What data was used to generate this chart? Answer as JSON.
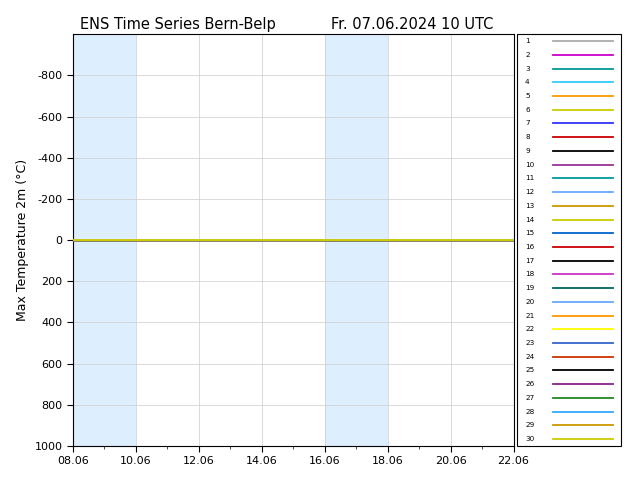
{
  "title_left": "ENS Time Series Bern-Belp",
  "title_right": "Fr. 07.06.2024 10 UTC",
  "ylabel": "Max Temperature 2m (°C)",
  "ylim_bottom": 1000,
  "ylim_top": -1000,
  "yticks": [
    -800,
    -600,
    -400,
    -200,
    0,
    200,
    400,
    600,
    800,
    1000
  ],
  "xtick_labels": [
    "08.06",
    "10.06",
    "12.06",
    "14.06",
    "16.06",
    "18.06",
    "20.06",
    "22.06"
  ],
  "xtick_positions": [
    0,
    2,
    4,
    6,
    8,
    10,
    12,
    14
  ],
  "shade_ranges": [
    [
      0,
      2
    ],
    [
      8,
      10
    ]
  ],
  "member_colors": [
    "#aaaaaa",
    "#cc00cc",
    "#009999",
    "#33ccff",
    "#ff9900",
    "#cccc00",
    "#3333ff",
    "#cc0000",
    "#000000",
    "#993399",
    "#009999",
    "#66aaff",
    "#cc9900",
    "#cccc00",
    "#0066cc",
    "#cc0000",
    "#000000",
    "#cc33cc",
    "#006666",
    "#66aaff",
    "#ff9900",
    "#ffff00",
    "#3366cc",
    "#cc3300",
    "#000000",
    "#882288",
    "#228822",
    "#33aaff",
    "#cc9900",
    "#cccc00"
  ],
  "n_members": 30,
  "line_y_value": 0,
  "background_color": "#ffffff",
  "shade_color": "#ddeeff",
  "grid_color": "#cccccc",
  "x_start": 0,
  "x_end": 14
}
